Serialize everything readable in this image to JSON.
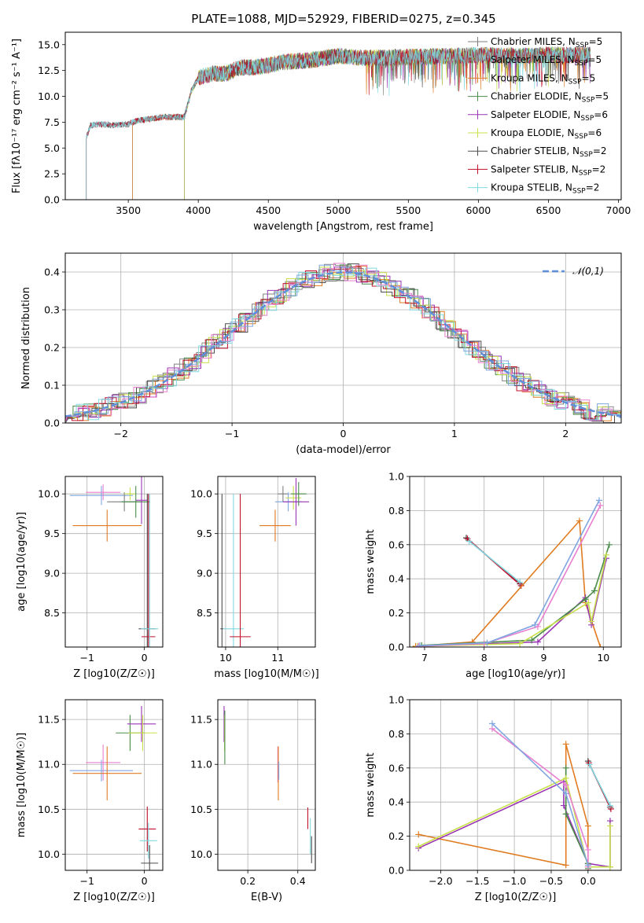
{
  "figure": {
    "title": "PLATE=1088, MJD=52929, FIBERID=0275, z=0.345"
  },
  "chart_data": [
    {
      "id": "spectrum",
      "type": "line",
      "xlabel": "wavelength [Angstrom, rest frame]",
      "ylabel": "Flux [fλ10⁻¹⁷ erg cm⁻² s⁻¹ A⁻¹]",
      "xlim": [
        3050,
        7020
      ],
      "ylim": [
        0,
        16.2
      ],
      "xticks": [
        3500,
        4000,
        4500,
        5000,
        5500,
        6000,
        6500,
        7000
      ],
      "xtick_labels": [
        "3500",
        "4000",
        "4500",
        "5000",
        "5500",
        "6000",
        "6500",
        "7000"
      ],
      "yticks": [
        0.0,
        2.5,
        5.0,
        7.5,
        10.0,
        12.5,
        15.0
      ],
      "ytick_labels": [
        "0.0",
        "2.5",
        "5.0",
        "7.5",
        "10.0",
        "12.5",
        "15.0"
      ],
      "grid": false,
      "legend_position": "top-right",
      "series": [
        {
          "name": "Chabrier MILES, N_SSP=5",
          "label_main": "Chabrier MILES, N",
          "label_sub": "SSP",
          "label_tail": "=5",
          "color": "#7f7f7f",
          "x_start": 3200,
          "x_end": 6800
        },
        {
          "name": "Salpeter MILES, N_SSP=5",
          "label_main": "Salpeter MILES, N",
          "label_sub": "SSP",
          "label_tail": "=5",
          "color": "#8c8c8c",
          "x_start": 3530,
          "x_end": 6800
        },
        {
          "name": "Kroupa MILES, N_SSP=5",
          "label_main": "Kroupa MILES, N",
          "label_sub": "SSP",
          "label_tail": "=5",
          "color": "#e07b20",
          "x_start": 3530,
          "x_end": 6800
        },
        {
          "name": "Chabrier ELODIE, N_SSP=5",
          "label_main": "Chabrier ELODIE, N",
          "label_sub": "SSP",
          "label_tail": "=5",
          "color": "#4a8c4a",
          "x_start": 3900,
          "x_end": 6800
        },
        {
          "name": "Salpeter ELODIE, N_SSP=6",
          "label_main": "Salpeter ELODIE, N",
          "label_sub": "SSP",
          "label_tail": "=6",
          "color": "#9a35b5",
          "x_start": 3900,
          "x_end": 6800
        },
        {
          "name": "Kroupa ELODIE, N_SSP=6",
          "label_main": "Kroupa ELODIE, N",
          "label_sub": "SSP",
          "label_tail": "=6",
          "color": "#c8e04a",
          "x_start": 3900,
          "x_end": 6800
        },
        {
          "name": "Chabrier STELIB, N_SSP=2",
          "label_main": "Chabrier STELIB, N",
          "label_sub": "SSP",
          "label_tail": "=2",
          "color": "#4d4d4d",
          "x_start": 3200,
          "x_end": 6800
        },
        {
          "name": "Salpeter STELIB, N_SSP=2",
          "label_main": "Salpeter STELIB, N",
          "label_sub": "SSP",
          "label_tail": "=2",
          "color": "#c0102a",
          "x_start": 3200,
          "x_end": 6800
        },
        {
          "name": "Kroupa STELIB, N_SSP=2",
          "label_main": "Kroupa STELIB, N",
          "label_sub": "SSP",
          "label_tail": "=2",
          "color": "#80d8e0",
          "x_start": 3200,
          "x_end": 6800
        }
      ],
      "continuum": {
        "x": [
          3200,
          3230,
          3300,
          3400,
          3500,
          3550,
          3700,
          3760,
          3800,
          3900,
          3950,
          4000,
          4100,
          4200,
          4300,
          4400,
          4500,
          4600,
          4800,
          5000,
          5200,
          5500,
          5800,
          6000,
          6300,
          6500,
          6800
        ],
        "y": [
          6.0,
          7.2,
          7.3,
          7.2,
          7.3,
          7.6,
          7.9,
          8.0,
          8.0,
          8.0,
          10.5,
          11.8,
          12.2,
          12.2,
          12.8,
          12.8,
          13.0,
          13.3,
          13.5,
          13.9,
          13.7,
          13.8,
          13.9,
          14.0,
          13.9,
          14.0,
          14.0
        ]
      }
    },
    {
      "id": "residuals",
      "type": "bar",
      "xlabel": "(data-model)/error",
      "ylabel": "Normed distribution",
      "xlim": [
        -2.5,
        2.5
      ],
      "ylim": [
        0,
        0.45
      ],
      "xticks": [
        -2,
        -1,
        0,
        1,
        2
      ],
      "xtick_labels": [
        "−2",
        "−1",
        "0",
        "1",
        "2"
      ],
      "yticks": [
        0.0,
        0.1,
        0.2,
        0.3,
        0.4
      ],
      "ytick_labels": [
        "0.0",
        "0.1",
        "0.2",
        "0.3",
        "0.4"
      ],
      "grid": true,
      "legend_position": "top-right",
      "reference": {
        "name": "𝒩(0,1)",
        "mean": 0,
        "sigma": 1,
        "color": "#5f8fd8"
      },
      "bin_width": 0.1,
      "series_colors": [
        "#7f7f7f",
        "#8c8c8c",
        "#e07b20",
        "#4a8c4a",
        "#9a35b5",
        "#c8e04a",
        "#4d4d4d",
        "#c0102a",
        "#80d8e0",
        "#e87fcf",
        "#7fa6e0"
      ],
      "series_offsets": [
        -0.02,
        0.03,
        0.01,
        -0.03,
        0.02,
        -0.01,
        0.04,
        -0.04,
        0.0,
        0.015,
        -0.015
      ]
    },
    {
      "id": "age_vs_Z",
      "type": "scatter",
      "xlabel": "Z [log10(Z/Z☉)]",
      "ylabel": "age  [log10(age/yr)]",
      "xlim": [
        -1.38,
        0.32
      ],
      "ylim": [
        8.07,
        10.22
      ],
      "xticks": [
        -1,
        0
      ],
      "xtick_labels": [
        "−1",
        "0"
      ],
      "yticks": [
        8.5,
        9.0,
        9.5,
        10.0
      ],
      "ytick_labels": [
        "8.5",
        "9.0",
        "9.5",
        "10.0"
      ],
      "grid": true,
      "points": [
        {
          "x": -0.75,
          "y": 9.98,
          "xerr": 0.55,
          "yerr": 0.12,
          "color": "#7fa6e0"
        },
        {
          "x": -0.72,
          "y": 10.02,
          "xerr": 0.3,
          "yerr": 0.1,
          "color": "#e87fcf"
        },
        {
          "x": -0.65,
          "y": 9.6,
          "xerr": 0.6,
          "yerr": 0.2,
          "color": "#e07b20"
        },
        {
          "x": -0.35,
          "y": 9.9,
          "xerr": 0.3,
          "yerr": 0.12,
          "color": "#7f7f7f"
        },
        {
          "x": -0.25,
          "y": 10.0,
          "xerr": 0.1,
          "yerr": 0.08,
          "color": "#c8e04a"
        },
        {
          "x": -0.15,
          "y": 9.9,
          "xerr": 0.25,
          "yerr": 0.2,
          "color": "#4a8c4a"
        },
        {
          "x": -0.05,
          "y": 9.92,
          "xerr": 0.1,
          "yerr": 0.3,
          "color": "#9a35b5"
        },
        {
          "x": 0.05,
          "y": 8.3,
          "xerr": 0.15,
          "yerr": 1.7,
          "color": "#4d4d4d"
        },
        {
          "x": 0.07,
          "y": 8.2,
          "xerr": 0.12,
          "yerr": 1.8,
          "color": "#c0102a"
        },
        {
          "x": 0.09,
          "y": 8.3,
          "xerr": 0.15,
          "yerr": 1.7,
          "color": "#80d8e0"
        }
      ]
    },
    {
      "id": "age_vs_mass",
      "type": "scatter",
      "xlabel": "mass [log10(M/M☉)]",
      "ylabel": "",
      "xlim": [
        9.85,
        11.72
      ],
      "ylim": [
        8.07,
        10.22
      ],
      "xticks": [
        10,
        11
      ],
      "xtick_labels": [
        "10",
        "11"
      ],
      "yticks": [
        8.5,
        9.0,
        9.5,
        10.0
      ],
      "ytick_labels": [
        "8.5",
        "9.0",
        "9.5",
        "10.0"
      ],
      "grid": true,
      "points": [
        {
          "x": 9.93,
          "y": 8.3,
          "xerr": 0.03,
          "yerr": 1.7,
          "color": "#4d4d4d"
        },
        {
          "x": 10.15,
          "y": 8.3,
          "xerr": 0.2,
          "yerr": 1.7,
          "color": "#80d8e0"
        },
        {
          "x": 10.28,
          "y": 8.2,
          "xerr": 0.2,
          "yerr": 1.8,
          "color": "#c0102a"
        },
        {
          "x": 10.95,
          "y": 9.6,
          "xerr": 0.3,
          "yerr": 0.2,
          "color": "#e07b20"
        },
        {
          "x": 11.1,
          "y": 10.0,
          "xerr": 0.1,
          "yerr": 0.1,
          "color": "#7f7f7f"
        },
        {
          "x": 11.2,
          "y": 9.9,
          "xerr": 0.25,
          "yerr": 0.12,
          "color": "#7fa6e0"
        },
        {
          "x": 11.3,
          "y": 9.95,
          "xerr": 0.15,
          "yerr": 0.15,
          "color": "#c8e04a"
        },
        {
          "x": 11.35,
          "y": 9.9,
          "xerr": 0.25,
          "yerr": 0.3,
          "color": "#9a35b5"
        },
        {
          "x": 11.4,
          "y": 10.0,
          "xerr": 0.15,
          "yerr": 0.15,
          "color": "#4a8c4a"
        }
      ]
    },
    {
      "id": "weight_vs_age",
      "type": "line",
      "xlabel": "age  [log10(age/yr)]",
      "ylabel": "mass weight",
      "xlim": [
        6.75,
        10.3
      ],
      "ylim": [
        0,
        1.0
      ],
      "xticks": [
        7,
        8,
        9,
        10
      ],
      "xtick_labels": [
        "7",
        "8",
        "9",
        "10"
      ],
      "yticks": [
        0.0,
        0.2,
        0.4,
        0.6,
        0.8,
        1.0
      ],
      "ytick_labels": [
        "0.0",
        "0.2",
        "0.4",
        "0.6",
        "0.8",
        "1.0"
      ],
      "grid": true,
      "series": [
        {
          "color": "#4d4d4d",
          "x": [
            7.7,
            8.6
          ],
          "y": [
            0.64,
            0.37
          ]
        },
        {
          "color": "#c0102a",
          "x": [
            7.72,
            8.62
          ],
          "y": [
            0.635,
            0.36
          ]
        },
        {
          "color": "#80d8e0",
          "x": [
            7.75,
            8.6
          ],
          "y": [
            0.62,
            0.38
          ]
        },
        {
          "color": "#e07b20",
          "x": [
            6.85,
            7.8,
            9.6,
            9.7,
            9.95
          ],
          "y": [
            0.005,
            0.03,
            0.74,
            0.26,
            0.0
          ]
        },
        {
          "color": "#9a35b5",
          "x": [
            6.9,
            8.9,
            9.7,
            9.8,
            10.05
          ],
          "y": [
            0.005,
            0.03,
            0.29,
            0.13,
            0.52
          ]
        },
        {
          "color": "#4a8c4a",
          "x": [
            6.95,
            8.8,
            9.7,
            9.85,
            10.1
          ],
          "y": [
            0.01,
            0.04,
            0.28,
            0.33,
            0.6
          ]
        },
        {
          "color": "#c8e04a",
          "x": [
            6.88,
            8.6,
            9.75,
            9.8,
            10.05
          ],
          "y": [
            0.005,
            0.02,
            0.26,
            0.15,
            0.54
          ]
        },
        {
          "color": "#e87fcf",
          "x": [
            6.9,
            8.0,
            8.9,
            9.95
          ],
          "y": [
            0.005,
            0.02,
            0.12,
            0.83
          ]
        },
        {
          "color": "#7fa6e0",
          "x": [
            6.92,
            8.05,
            8.85,
            9.93
          ],
          "y": [
            0.008,
            0.025,
            0.13,
            0.86
          ]
        }
      ]
    },
    {
      "id": "mass_vs_Z",
      "type": "scatter",
      "xlabel": "Z [log10(Z/Z☉)]",
      "ylabel": "mass [log10(M/M☉)]",
      "xlim": [
        -1.38,
        0.32
      ],
      "ylim": [
        9.82,
        11.72
      ],
      "xticks": [
        -1,
        0
      ],
      "xtick_labels": [
        "−1",
        "0"
      ],
      "yticks": [
        10.0,
        10.5,
        11.0,
        11.5
      ],
      "ytick_labels": [
        "10.0",
        "10.5",
        "11.0",
        "11.5"
      ],
      "grid": true,
      "points": [
        {
          "x": -0.75,
          "y": 10.93,
          "xerr": 0.55,
          "yerr": 0.12,
          "color": "#7fa6e0"
        },
        {
          "x": -0.72,
          "y": 11.02,
          "xerr": 0.3,
          "yerr": 0.2,
          "color": "#e87fcf"
        },
        {
          "x": -0.65,
          "y": 10.9,
          "xerr": 0.6,
          "yerr": 0.3,
          "color": "#e07b20"
        },
        {
          "x": -0.25,
          "y": 11.35,
          "xerr": 0.25,
          "yerr": 0.2,
          "color": "#4a8c4a"
        },
        {
          "x": -0.05,
          "y": 11.45,
          "xerr": 0.25,
          "yerr": 0.2,
          "color": "#9a35b5"
        },
        {
          "x": -0.03,
          "y": 11.35,
          "xerr": 0.25,
          "yerr": 0.2,
          "color": "#c8e04a"
        },
        {
          "x": 0.05,
          "y": 10.28,
          "xerr": 0.15,
          "yerr": 0.25,
          "color": "#c0102a"
        },
        {
          "x": 0.07,
          "y": 10.15,
          "xerr": 0.15,
          "yerr": 0.2,
          "color": "#80d8e0"
        },
        {
          "x": 0.09,
          "y": 9.9,
          "xerr": 0.15,
          "yerr": 0.2,
          "color": "#4d4d4d"
        }
      ]
    },
    {
      "id": "mass_vs_EBV",
      "type": "scatter",
      "xlabel": "E(B-V)",
      "ylabel": "",
      "xlim": [
        0.08,
        0.47
      ],
      "ylim": [
        9.82,
        11.72
      ],
      "xticks": [
        0.2,
        0.4
      ],
      "xtick_labels": [
        "0.2",
        "0.4"
      ],
      "yticks": [
        10.0,
        10.5,
        11.0,
        11.5
      ],
      "ytick_labels": [
        "10.0",
        "10.5",
        "11.0",
        "11.5"
      ],
      "grid": true,
      "points": [
        {
          "x": 0.105,
          "y": 11.45,
          "xerr": 0.0,
          "yerr": 0.2,
          "color": "#9a35b5"
        },
        {
          "x": 0.107,
          "y": 11.35,
          "xerr": 0.0,
          "yerr": 0.2,
          "color": "#c8e04a"
        },
        {
          "x": 0.108,
          "y": 11.3,
          "xerr": 0.0,
          "yerr": 0.3,
          "color": "#4a8c4a"
        },
        {
          "x": 0.32,
          "y": 11.0,
          "xerr": 0.0,
          "yerr": 0.2,
          "color": "#e87fcf"
        },
        {
          "x": 0.322,
          "y": 10.9,
          "xerr": 0.0,
          "yerr": 0.3,
          "color": "#e07b20"
        },
        {
          "x": 0.324,
          "y": 10.93,
          "xerr": 0.0,
          "yerr": 0.1,
          "color": "#7fa6e0"
        },
        {
          "x": 0.44,
          "y": 10.4,
          "xerr": 0.0,
          "yerr": 0.12,
          "color": "#c0102a"
        },
        {
          "x": 0.45,
          "y": 10.2,
          "xerr": 0.0,
          "yerr": 0.2,
          "color": "#80d8e0"
        },
        {
          "x": 0.455,
          "y": 10.05,
          "xerr": 0.0,
          "yerr": 0.15,
          "color": "#4d4d4d"
        }
      ]
    },
    {
      "id": "weight_vs_Z",
      "type": "line",
      "xlabel": "Z [log10(Z/Z☉)]",
      "ylabel": "mass weight",
      "xlim": [
        -2.42,
        0.45
      ],
      "ylim": [
        0,
        1.0
      ],
      "xticks": [
        -2.0,
        -1.5,
        -1.0,
        -0.5,
        0.0
      ],
      "xtick_labels": [
        "−2.0",
        "−1.5",
        "−1.0",
        "−0.5",
        "0.0"
      ],
      "yticks": [
        0.0,
        0.2,
        0.4,
        0.6,
        0.8,
        1.0
      ],
      "ytick_labels": [
        "0.0",
        "0.2",
        "0.4",
        "0.6",
        "0.8",
        "1.0"
      ],
      "grid": true,
      "series": [
        {
          "color": "#e07b20",
          "x": [
            -2.3,
            -0.3,
            -0.3,
            0.0,
            0.0
          ],
          "y": [
            0.21,
            0.03,
            0.74,
            0.26,
            0.0
          ]
        },
        {
          "color": "#9a35b5",
          "x": [
            -2.3,
            -0.33,
            -0.33,
            0.0,
            0.3,
            0.3
          ],
          "y": [
            0.13,
            0.52,
            0.38,
            0.04,
            0.02,
            0.29
          ]
        },
        {
          "color": "#4a8c4a",
          "x": [
            -0.3,
            -0.3,
            0.0,
            0.0
          ],
          "y": [
            0.6,
            0.33,
            0.04,
            0.01
          ]
        },
        {
          "color": "#c8e04a",
          "x": [
            -2.3,
            -0.3,
            0.0,
            0.3,
            0.3
          ],
          "y": [
            0.14,
            0.54,
            0.02,
            0.02,
            0.26
          ]
        },
        {
          "color": "#4d4d4d",
          "x": [
            0.0,
            0.3
          ],
          "y": [
            0.64,
            0.37
          ]
        },
        {
          "color": "#c0102a",
          "x": [
            0.01,
            0.31
          ],
          "y": [
            0.63,
            0.36
          ]
        },
        {
          "color": "#80d8e0",
          "x": [
            0.02,
            0.3
          ],
          "y": [
            0.62,
            0.38
          ]
        },
        {
          "color": "#e87fcf",
          "x": [
            -1.3,
            -0.3,
            0.0,
            0.0
          ],
          "y": [
            0.83,
            0.5,
            0.12,
            0.02
          ]
        },
        {
          "color": "#7fa6e0",
          "x": [
            -1.3,
            -0.3,
            0.0
          ],
          "y": [
            0.86,
            0.45,
            0.03
          ]
        }
      ]
    }
  ]
}
